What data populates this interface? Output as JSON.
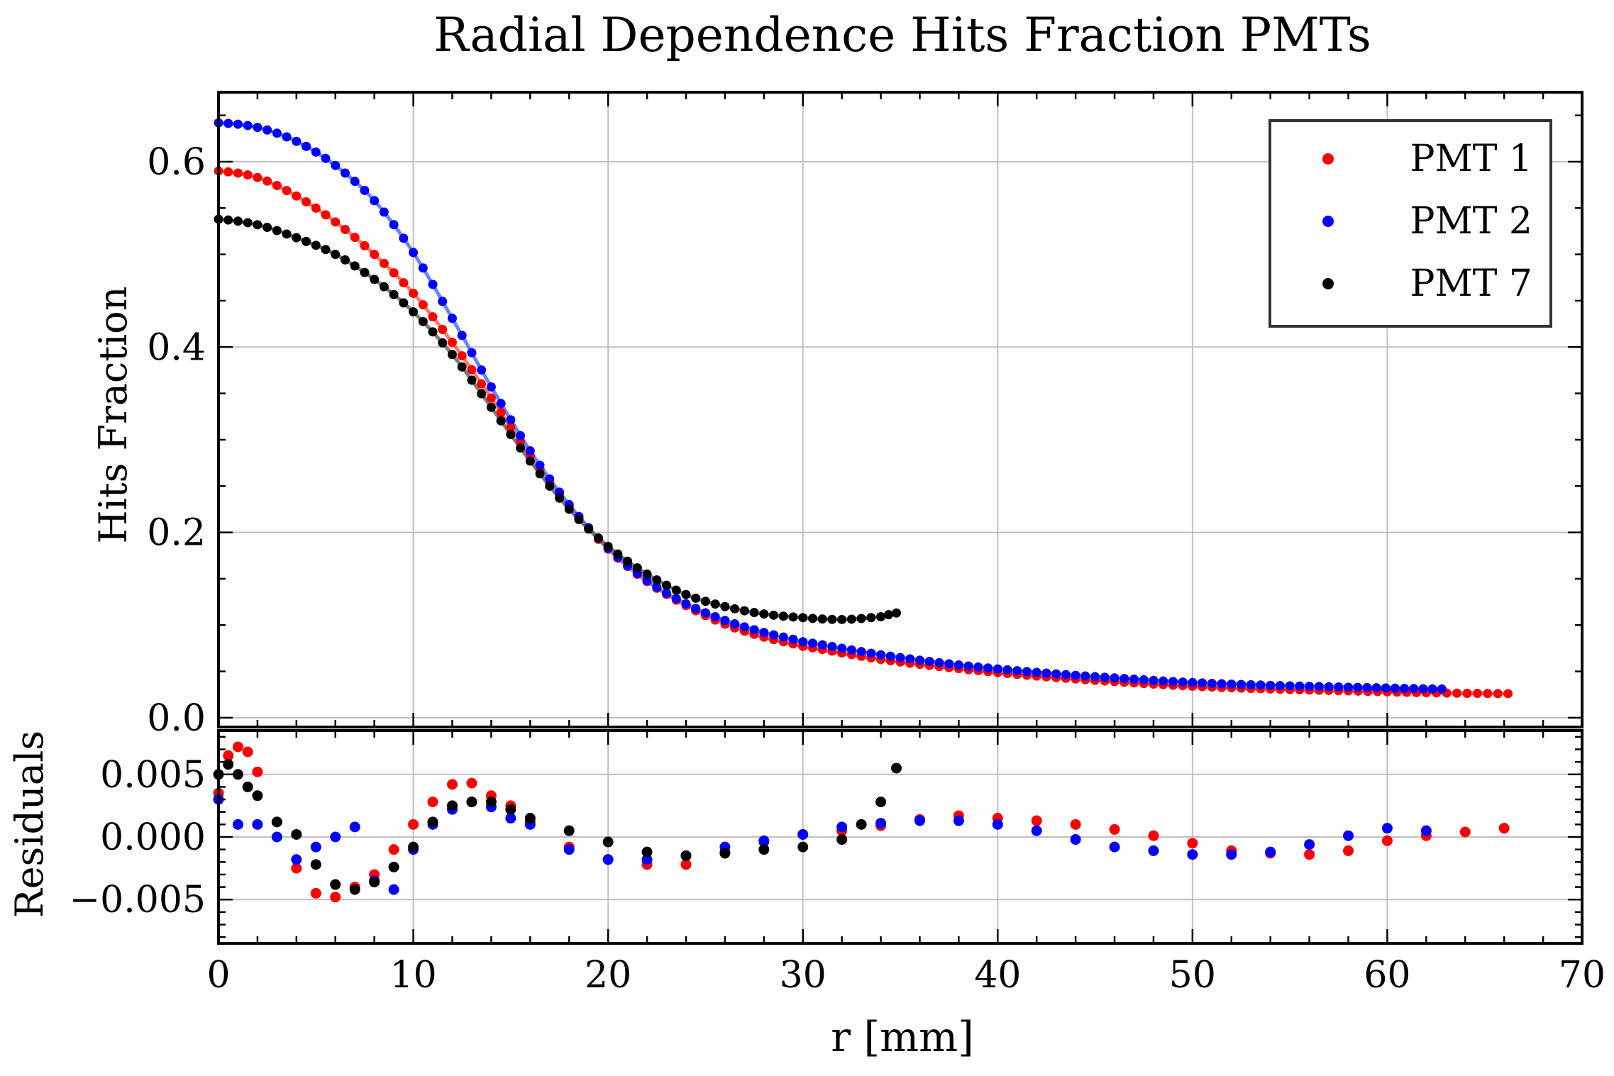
{
  "chart_data": {
    "type": "scatter",
    "title": "Radial Dependence Hits Fraction PMTs",
    "xlabel": "r [mm]",
    "xlim": [
      0,
      70
    ],
    "xticks": [
      "0",
      "10",
      "20",
      "30",
      "40",
      "50",
      "60",
      "70"
    ],
    "grid": true,
    "legend_placement": "top-right",
    "panels": [
      {
        "id": "main",
        "ylabel": "Hits Fraction",
        "ylim": [
          -0.01,
          0.675
        ],
        "yticks": [
          "0.0",
          "0.2",
          "0.4",
          "0.6"
        ],
        "fit_lines": true
      },
      {
        "id": "residuals",
        "ylabel": "Residuals",
        "ylim": [
          -0.0085,
          0.0085
        ],
        "yticks": [
          "0.005",
          "0.000",
          "−0.005"
        ]
      }
    ],
    "series": [
      {
        "name": "PMT 1",
        "color": "#ff0000",
        "x": [
          0,
          2,
          4,
          6,
          8,
          10,
          12,
          14,
          16,
          18,
          20,
          22,
          24,
          26,
          28,
          30,
          34,
          38,
          42,
          46,
          50,
          54,
          58,
          62,
          66.2
        ],
        "y": [
          0.59,
          0.583,
          0.563,
          0.535,
          0.5,
          0.458,
          0.405,
          0.345,
          0.283,
          0.228,
          0.182,
          0.147,
          0.121,
          0.101,
          0.087,
          0.077,
          0.063,
          0.053,
          0.045,
          0.039,
          0.034,
          0.031,
          0.029,
          0.027,
          0.026
        ],
        "residuals": {
          "x": [
            0,
            0.5,
            1,
            1.5,
            2,
            3,
            4,
            5,
            6,
            7,
            8,
            9,
            10,
            11,
            12,
            13,
            14,
            15,
            16,
            18,
            20,
            22,
            24,
            26,
            28,
            30,
            32,
            34,
            36,
            38,
            40,
            42,
            44,
            46,
            48,
            50,
            52,
            54,
            56,
            58,
            60,
            62,
            64,
            66
          ],
          "y": [
            0.0035,
            0.0065,
            0.0072,
            0.0068,
            0.0052,
            0.0012,
            -0.0025,
            -0.0045,
            -0.0048,
            -0.004,
            -0.003,
            -0.001,
            0.001,
            0.0028,
            0.0042,
            0.0043,
            0.0033,
            0.0025,
            0.0012,
            -0.0008,
            -0.0018,
            -0.0022,
            -0.0022,
            -0.0012,
            -0.0004,
            0.0002,
            0.0005,
            0.0009,
            0.0014,
            0.0017,
            0.0015,
            0.0013,
            0.001,
            0.0006,
            0.0001,
            -0.0005,
            -0.0011,
            -0.0013,
            -0.0014,
            -0.0011,
            -0.0003,
            0.0001,
            0.0004,
            0.0007
          ]
        }
      },
      {
        "name": "PMT 2",
        "color": "#0000ff",
        "x": [
          0,
          2,
          4,
          6,
          8,
          10,
          12,
          14,
          16,
          18,
          20,
          22,
          24,
          26,
          28,
          30,
          34,
          38,
          42,
          46,
          50,
          54,
          58,
          62.8
        ],
        "y": [
          0.642,
          0.637,
          0.622,
          0.596,
          0.558,
          0.502,
          0.431,
          0.357,
          0.288,
          0.23,
          0.183,
          0.148,
          0.123,
          0.105,
          0.092,
          0.082,
          0.068,
          0.057,
          0.049,
          0.043,
          0.038,
          0.035,
          0.033,
          0.031
        ],
        "residuals": {
          "x": [
            0,
            1,
            2,
            3,
            4,
            5,
            6,
            7,
            8,
            9,
            10,
            11,
            12,
            13,
            14,
            15,
            16,
            18,
            20,
            22,
            24,
            26,
            28,
            30,
            32,
            34,
            36,
            38,
            40,
            42,
            44,
            46,
            48,
            50,
            52,
            54,
            56,
            58,
            60,
            62
          ],
          "y": [
            0.003,
            0.001,
            0.001,
            0,
            -0.0018,
            -0.0008,
            0,
            0.0008,
            -0.0035,
            -0.0042,
            -0.001,
            0.001,
            0.0022,
            0.0028,
            0.0024,
            0.0015,
            0.001,
            -0.001,
            -0.0018,
            -0.0018,
            -0.0015,
            -0.0008,
            -0.0003,
            0.0002,
            0.0008,
            0.0011,
            0.0013,
            0.0013,
            0.001,
            0.0005,
            -0.0002,
            -0.0008,
            -0.0011,
            -0.0014,
            -0.0014,
            -0.0012,
            -0.0006,
            0.0001,
            0.0007,
            0.0005
          ]
        }
      },
      {
        "name": "PMT 7",
        "color": "#000000",
        "x": [
          0,
          2,
          4,
          6,
          8,
          10,
          12,
          14,
          16,
          18,
          20,
          22,
          24,
          26,
          28,
          30,
          32,
          34,
          34.8
        ],
        "y": [
          0.538,
          0.532,
          0.518,
          0.5,
          0.473,
          0.438,
          0.392,
          0.335,
          0.277,
          0.225,
          0.185,
          0.155,
          0.133,
          0.12,
          0.112,
          0.108,
          0.106,
          0.109,
          0.113
        ],
        "residuals": {
          "x": [
            0,
            0.5,
            1,
            1.5,
            2,
            3,
            4,
            5,
            6,
            7,
            8,
            9,
            10,
            11,
            12,
            13,
            14,
            15,
            16,
            18,
            20,
            22,
            24,
            26,
            28,
            30,
            32,
            33,
            34,
            34.8
          ],
          "y": [
            0.005,
            0.0058,
            0.005,
            0.004,
            0.0033,
            0.0012,
            0.0002,
            -0.0022,
            -0.0038,
            -0.0042,
            -0.0036,
            -0.0024,
            -0.0008,
            0.0012,
            0.0025,
            0.0028,
            0.0028,
            0.0022,
            0.0015,
            0.0005,
            -0.0004,
            -0.0012,
            -0.0015,
            -0.0013,
            -0.001,
            -0.0008,
            -0.0002,
            0.001,
            0.0028,
            0.0055
          ]
        }
      }
    ]
  }
}
